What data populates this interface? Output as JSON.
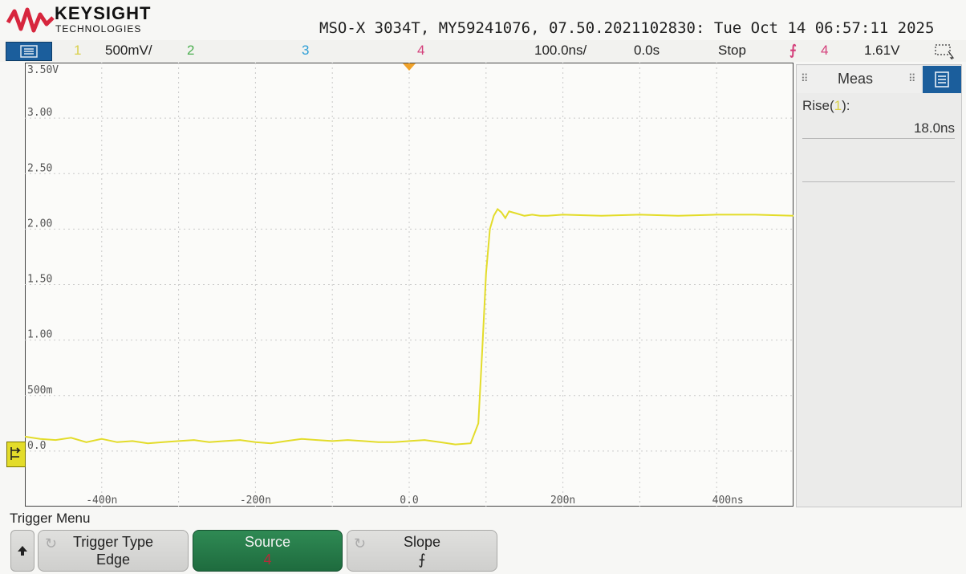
{
  "brand": {
    "name": "KEYSIGHT",
    "sub": "TECHNOLOGIES"
  },
  "header": {
    "instrument": "MSO-X 3034T, MY59241076, 07.50.2021102830: Tue Oct 14 06:57:11 2025"
  },
  "status_bar": {
    "ch1_num": "1",
    "ch1_scale": "500mV/",
    "ch2_num": "2",
    "ch3_num": "3",
    "ch4_num": "4",
    "timebase": "100.0ns/",
    "delay": "0.0s",
    "run_state": "Stop",
    "trigger_slope_symbol": "⨍",
    "trigger_source": "4",
    "trigger_level": "1.61V"
  },
  "graticule": {
    "y_labels": [
      "3.50V",
      "3.00",
      "2.50",
      "2.00",
      "1.50",
      "1.00",
      "500m",
      "0.0"
    ],
    "x_labels": [
      "-400n",
      "-200n",
      "0.0",
      "200n",
      "400ns"
    ]
  },
  "chart_data": {
    "type": "line",
    "xlabel": "",
    "ylabel": "",
    "x_unit": "s",
    "y_unit": "V",
    "xlim": [
      -5e-07,
      5e-07
    ],
    "ylim": [
      -0.5,
      3.5
    ],
    "grid": true,
    "series": [
      {
        "color": "#e3dc2a",
        "x": [
          -5e-07,
          -4.8e-07,
          -4.6e-07,
          -4.4e-07,
          -4.2e-07,
          -4e-07,
          -3.8e-07,
          -3.6e-07,
          -3.4e-07,
          -3.2e-07,
          -3e-07,
          -2.8e-07,
          -2.6e-07,
          -2.4e-07,
          -2.2e-07,
          -2e-07,
          -1.8e-07,
          -1.6e-07,
          -1.4e-07,
          -1.2e-07,
          -1e-07,
          -8e-08,
          -6e-08,
          -4e-08,
          -2e-08,
          0,
          2e-08,
          4e-08,
          6e-08,
          8e-08,
          9e-08,
          9.5e-08,
          1e-07,
          1.05e-07,
          1.1e-07,
          1.15e-07,
          1.2e-07,
          1.25e-07,
          1.3e-07,
          1.4e-07,
          1.5e-07,
          1.6e-07,
          1.7e-07,
          1.8e-07,
          2e-07,
          2.5e-07,
          3e-07,
          3.5e-07,
          4e-07,
          4.5e-07,
          5e-07
        ],
        "y": [
          0.13,
          0.11,
          0.1,
          0.12,
          0.08,
          0.11,
          0.08,
          0.09,
          0.07,
          0.08,
          0.09,
          0.1,
          0.08,
          0.09,
          0.1,
          0.08,
          0.07,
          0.09,
          0.11,
          0.1,
          0.09,
          0.1,
          0.09,
          0.08,
          0.08,
          0.09,
          0.1,
          0.08,
          0.06,
          0.07,
          0.25,
          0.9,
          1.6,
          2.0,
          2.12,
          2.18,
          2.15,
          2.1,
          2.16,
          2.14,
          2.12,
          2.13,
          2.12,
          2.12,
          2.13,
          2.12,
          2.13,
          2.12,
          2.13,
          2.13,
          2.12
        ]
      }
    ]
  },
  "meas": {
    "title": "Meas",
    "label_prefix": "Rise(",
    "label_channel": "1",
    "label_suffix": "):",
    "value": "18.0ns"
  },
  "softkeys": {
    "menu_title": "Trigger Menu",
    "trigger_type_label": "Trigger Type",
    "trigger_type_value": "Edge",
    "source_label": "Source",
    "source_value": "4",
    "slope_label": "Slope",
    "slope_value": "⨍"
  },
  "colors": {
    "ch1": "#e3dc2a",
    "ch2": "#4caf50",
    "ch3": "#2e9fd6",
    "ch4": "#d43f7a",
    "softkey_active": "#2f8a54",
    "menu_blue": "#1b5e9c"
  }
}
